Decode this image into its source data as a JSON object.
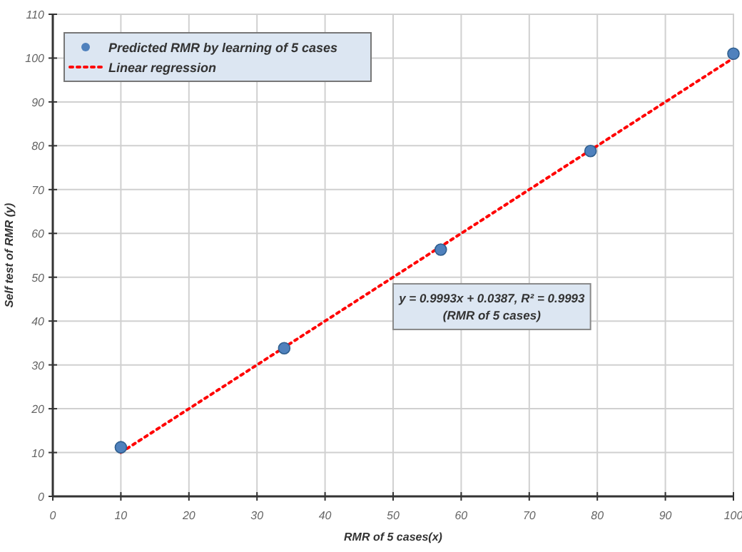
{
  "chart_data": {
    "type": "scatter",
    "xlabel": "RMR of 5 cases(x)",
    "ylabel": "Self test of RMR (y)",
    "xlim": [
      0,
      100
    ],
    "xticks": [
      0,
      10,
      20,
      30,
      40,
      50,
      60,
      70,
      80,
      90,
      100
    ],
    "ylim": [
      0,
      110
    ],
    "yticks": [
      0,
      10,
      20,
      30,
      40,
      50,
      60,
      70,
      80,
      90,
      100,
      110
    ],
    "series": [
      {
        "name": "Predicted RMR by learning of 5 cases",
        "color": "#4f81bd",
        "marker": "circle",
        "x": [
          10,
          34,
          57,
          79,
          100
        ],
        "values": [
          11.2,
          33.8,
          56.3,
          78.8,
          101
        ]
      },
      {
        "name": "Linear regression",
        "type": "line",
        "color": "#ff0000",
        "line_style": "dotted",
        "x": [
          10,
          100
        ],
        "values": [
          10,
          100
        ]
      }
    ],
    "annotations": [
      "y = 0.9993x + 0.0387, R² = 0.9993",
      "(RMR of 5 cases)"
    ],
    "grid": true,
    "legend": "top left"
  }
}
